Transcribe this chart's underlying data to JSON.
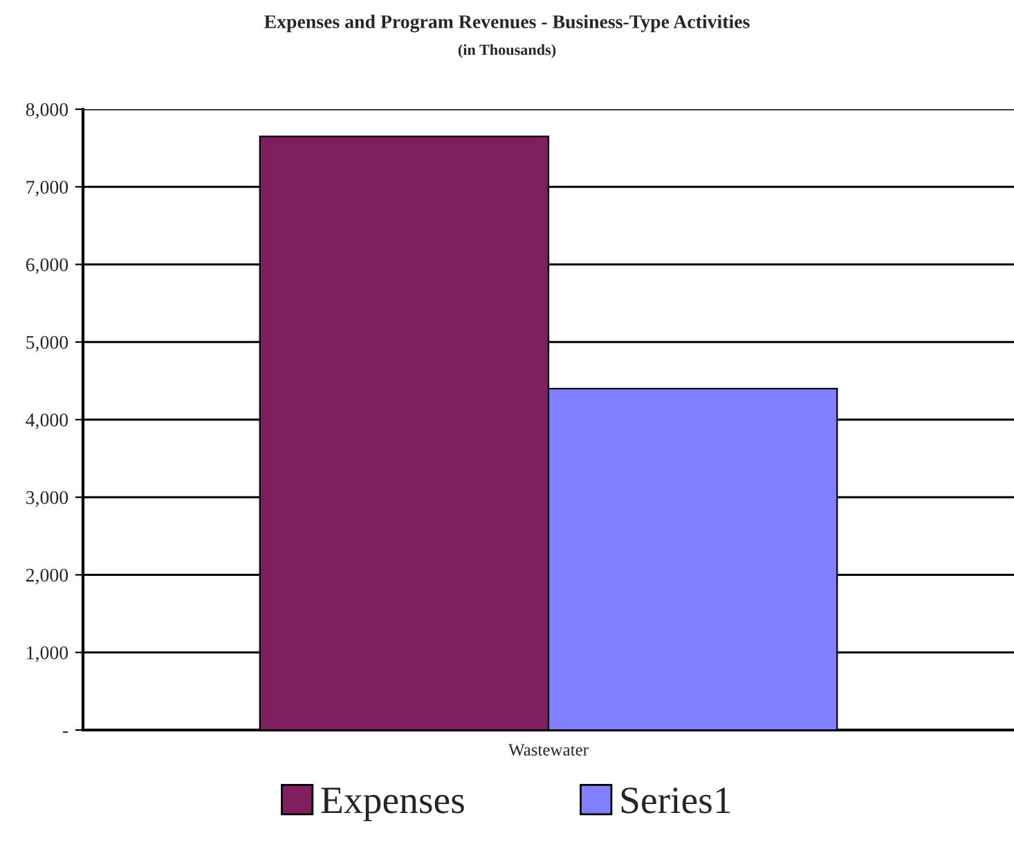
{
  "chart_data": {
    "type": "bar",
    "title": "Expenses and Program Revenues - Business-Type Activities",
    "subtitle": "(in Thousands)",
    "categories": [
      "Wastewater"
    ],
    "series": [
      {
        "name": "Expenses",
        "color": "#7f1f5f",
        "values": [
          7650
        ]
      },
      {
        "name": "Series1",
        "color": "#8080ff",
        "values": [
          4400
        ]
      }
    ],
    "ylim": [
      0,
      8000
    ],
    "yticks": [
      {
        "value": 0,
        "label": "-"
      },
      {
        "value": 1000,
        "label": "1,000"
      },
      {
        "value": 2000,
        "label": "2,000"
      },
      {
        "value": 3000,
        "label": "3,000"
      },
      {
        "value": 4000,
        "label": "4,000"
      },
      {
        "value": 5000,
        "label": "5,000"
      },
      {
        "value": 6000,
        "label": "6,000"
      },
      {
        "value": 7000,
        "label": "7,000"
      },
      {
        "value": 8000,
        "label": "8,000"
      }
    ],
    "grid": "y",
    "legend": "bottom"
  }
}
